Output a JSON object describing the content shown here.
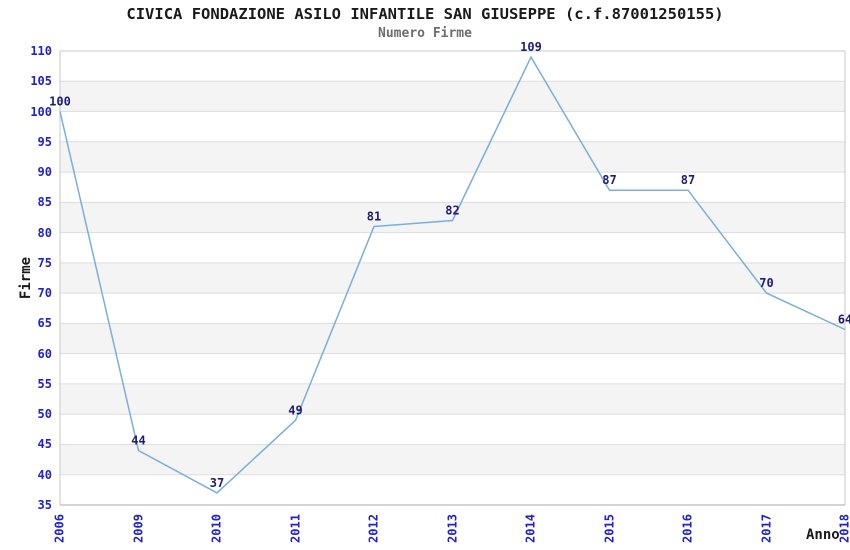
{
  "chart_data": {
    "type": "line",
    "title": "CIVICA FONDAZIONE ASILO INFANTILE SAN GIUSEPPE (c.f.87001250155)",
    "subtitle": "Numero Firme",
    "xlabel": "Anno",
    "ylabel": "Firme",
    "categories": [
      "2006",
      "2009",
      "2010",
      "2011",
      "2012",
      "2013",
      "2014",
      "2015",
      "2016",
      "2017",
      "2018"
    ],
    "series": [
      {
        "name": "Numero Firme",
        "values": [
          100,
          44,
          37,
          49,
          81,
          82,
          109,
          87,
          87,
          70,
          64
        ]
      }
    ],
    "data_labels": [
      "100",
      "44",
      "37",
      "49",
      "81",
      "82",
      "109",
      "87",
      "87",
      "70",
      "64"
    ],
    "ylim": [
      35,
      110
    ],
    "ytick_step": 5,
    "yticks": [
      110,
      105,
      100,
      95,
      90,
      85,
      80,
      75,
      70,
      65,
      60,
      55,
      50,
      45,
      40,
      35
    ],
    "grid": "horizontal gridlines with alternating shaded bands",
    "legend_position": "none",
    "colors": {
      "line": "#7aaede",
      "tick_label": "#2121cd",
      "data_label": "#1d1d78",
      "band_fill": "#f4f4f4",
      "gridline": "#dedede",
      "plot_border": "#c9c9c9",
      "bottom_axis": "#a8a8a8",
      "title": "#1a1a1a",
      "subtitle": "#6e6e6e"
    }
  }
}
